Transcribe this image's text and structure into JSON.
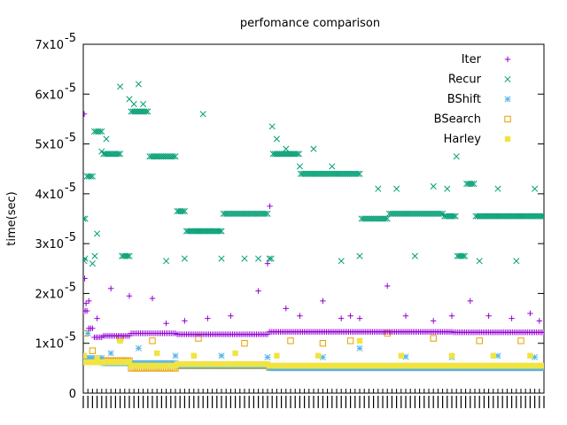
{
  "chart_data": {
    "type": "scatter",
    "title": "perfomance comparison",
    "xlabel": "",
    "ylabel": "time(sec)",
    "ylim": [
      0,
      7e-05
    ],
    "xlim": [
      0,
      1000
    ],
    "grid": false,
    "legend_position": "top-right",
    "y_ticks": [
      {
        "value": 0,
        "mantissa": "0",
        "exp": ""
      },
      {
        "value": 1e-05,
        "mantissa": "1x10",
        "exp": "-5"
      },
      {
        "value": 2e-05,
        "mantissa": "2x10",
        "exp": "-5"
      },
      {
        "value": 3e-05,
        "mantissa": "3x10",
        "exp": "-5"
      },
      {
        "value": 4e-05,
        "mantissa": "4x10",
        "exp": "-5"
      },
      {
        "value": 5e-05,
        "mantissa": "5x10",
        "exp": "-5"
      },
      {
        "value": 6e-05,
        "mantissa": "6x10",
        "exp": "-5"
      },
      {
        "value": 7e-05,
        "mantissa": "7x10",
        "exp": "-5"
      }
    ],
    "series": [
      {
        "name": "Iter",
        "color": "#9400d3",
        "marker": "plus",
        "baseline": [
          [
            0,
            1.65e-05
          ],
          [
            10,
            1.3e-05
          ],
          [
            20,
            1.12e-05
          ],
          [
            40,
            1.15e-05
          ],
          [
            100,
            1.2e-05
          ],
          [
            200,
            1.18e-05
          ],
          [
            400,
            1.23e-05
          ],
          [
            800,
            1.22e-05
          ],
          [
            1000,
            1.21e-05
          ]
        ],
        "outliers": [
          [
            2,
            5.6e-05
          ],
          [
            3,
            2.3e-05
          ],
          [
            6,
            1.8e-05
          ],
          [
            12,
            1.85e-05
          ],
          [
            30,
            1.5e-05
          ],
          [
            60,
            2.1e-05
          ],
          [
            100,
            1.95e-05
          ],
          [
            150,
            1.9e-05
          ],
          [
            180,
            1.4e-05
          ],
          [
            220,
            1.45e-05
          ],
          [
            270,
            1.5e-05
          ],
          [
            320,
            1.55e-05
          ],
          [
            380,
            2.05e-05
          ],
          [
            400,
            2.6e-05
          ],
          [
            405,
            3.75e-05
          ],
          [
            440,
            1.7e-05
          ],
          [
            470,
            1.55e-05
          ],
          [
            520,
            1.85e-05
          ],
          [
            560,
            1.5e-05
          ],
          [
            580,
            1.55e-05
          ],
          [
            600,
            1.5e-05
          ],
          [
            660,
            2.15e-05
          ],
          [
            700,
            1.55e-05
          ],
          [
            760,
            1.45e-05
          ],
          [
            800,
            1.55e-05
          ],
          [
            840,
            1.85e-05
          ],
          [
            880,
            1.55e-05
          ],
          [
            930,
            1.5e-05
          ],
          [
            970,
            1.6e-05
          ],
          [
            990,
            1.45e-05
          ]
        ]
      },
      {
        "name": "Recur",
        "color": "#009e73",
        "marker": "cross",
        "baseline": [
          [
            0,
            3.5e-05
          ],
          [
            6,
            4.35e-05
          ],
          [
            20,
            5.25e-05
          ],
          [
            40,
            4.8e-05
          ],
          [
            80,
            2.75e-05
          ],
          [
            100,
            5.65e-05
          ],
          [
            140,
            4.75e-05
          ],
          [
            200,
            3.65e-05
          ],
          [
            220,
            3.25e-05
          ],
          [
            300,
            3.6e-05
          ],
          [
            400,
            2.7e-05
          ],
          [
            410,
            4.8e-05
          ],
          [
            470,
            4.4e-05
          ],
          [
            600,
            3.5e-05
          ],
          [
            660,
            3.6e-05
          ],
          [
            780,
            3.55e-05
          ],
          [
            810,
            2.75e-05
          ],
          [
            830,
            4.2e-05
          ],
          [
            850,
            3.55e-05
          ],
          [
            1000,
            3.55e-05
          ]
        ],
        "outliers": [
          [
            2,
            2.65e-05
          ],
          [
            4,
            2.7e-05
          ],
          [
            20,
            2.6e-05
          ],
          [
            25,
            2.75e-05
          ],
          [
            30,
            3.2e-05
          ],
          [
            40,
            4.85e-05
          ],
          [
            50,
            5.1e-05
          ],
          [
            80,
            6.15e-05
          ],
          [
            100,
            5.9e-05
          ],
          [
            110,
            5.8e-05
          ],
          [
            120,
            6.2e-05
          ],
          [
            130,
            5.8e-05
          ],
          [
            160,
            4.75e-05
          ],
          [
            180,
            2.65e-05
          ],
          [
            220,
            2.7e-05
          ],
          [
            260,
            5.6e-05
          ],
          [
            300,
            2.7e-05
          ],
          [
            350,
            2.7e-05
          ],
          [
            380,
            2.7e-05
          ],
          [
            410,
            5.35e-05
          ],
          [
            420,
            5.1e-05
          ],
          [
            440,
            4.9e-05
          ],
          [
            470,
            4.55e-05
          ],
          [
            500,
            4.9e-05
          ],
          [
            540,
            4.55e-05
          ],
          [
            560,
            2.65e-05
          ],
          [
            600,
            2.75e-05
          ],
          [
            640,
            4.1e-05
          ],
          [
            680,
            4.1e-05
          ],
          [
            720,
            2.75e-05
          ],
          [
            760,
            4.15e-05
          ],
          [
            790,
            4.1e-05
          ],
          [
            810,
            4.75e-05
          ],
          [
            860,
            2.65e-05
          ],
          [
            900,
            4.1e-05
          ],
          [
            940,
            2.65e-05
          ],
          [
            980,
            4.1e-05
          ]
        ]
      },
      {
        "name": "BShift",
        "color": "#56b4e9",
        "marker": "star",
        "baseline": [
          [
            0,
            7e-06
          ],
          [
            40,
            6e-06
          ],
          [
            200,
            5.5e-06
          ],
          [
            400,
            5e-06
          ],
          [
            1000,
            4.8e-06
          ]
        ],
        "outliers": [
          [
            10,
            1.2e-05
          ],
          [
            60,
            8e-06
          ],
          [
            120,
            9e-06
          ],
          [
            200,
            7.5e-06
          ],
          [
            300,
            7.5e-06
          ],
          [
            400,
            7.2e-06
          ],
          [
            520,
            7.2e-06
          ],
          [
            600,
            9e-06
          ],
          [
            700,
            7.3e-06
          ],
          [
            800,
            7.2e-06
          ],
          [
            900,
            7.5e-06
          ],
          [
            980,
            7.2e-06
          ]
        ]
      },
      {
        "name": "BSearch",
        "color": "#e69f00",
        "marker": "square",
        "baseline": [
          [
            0,
            6.5e-06
          ],
          [
            100,
            5e-06
          ],
          [
            200,
            5.5e-06
          ],
          [
            400,
            5.2e-06
          ],
          [
            1000,
            5.2e-06
          ]
        ],
        "outliers": [
          [
            5,
            1.2e-05
          ],
          [
            20,
            8.5e-06
          ],
          [
            80,
            1.1e-05
          ],
          [
            150,
            1.05e-05
          ],
          [
            250,
            1.1e-05
          ],
          [
            350,
            1e-05
          ],
          [
            450,
            1.05e-05
          ],
          [
            520,
            1e-05
          ],
          [
            580,
            1.05e-05
          ],
          [
            660,
            1.2e-05
          ],
          [
            760,
            1.1e-05
          ],
          [
            860,
            1.05e-05
          ],
          [
            950,
            1.05e-05
          ]
        ]
      },
      {
        "name": "Harley",
        "color": "#f0e442",
        "marker": "filled-square",
        "baseline": [
          [
            0,
            6.2e-06
          ],
          [
            100,
            5.5e-06
          ],
          [
            200,
            5.8e-06
          ],
          [
            400,
            5.5e-06
          ],
          [
            1000,
            5.3e-06
          ]
        ],
        "outliers": [
          [
            2,
            7.5e-06
          ],
          [
            30,
            7e-06
          ],
          [
            80,
            1.05e-05
          ],
          [
            160,
            8e-06
          ],
          [
            240,
            7.5e-06
          ],
          [
            330,
            8e-06
          ],
          [
            420,
            7.5e-06
          ],
          [
            510,
            7.5e-06
          ],
          [
            600,
            1.05e-05
          ],
          [
            690,
            7.5e-06
          ],
          [
            800,
            7.5e-06
          ],
          [
            890,
            7.5e-06
          ],
          [
            970,
            7.5e-06
          ]
        ]
      }
    ]
  }
}
